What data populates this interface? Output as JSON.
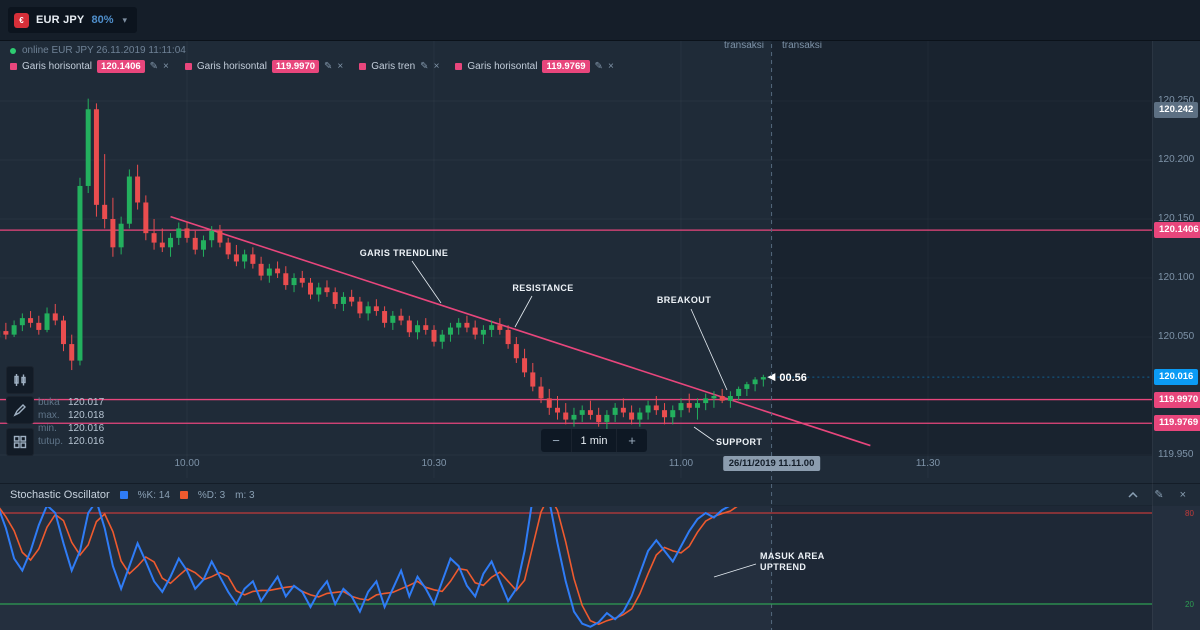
{
  "topbar": {
    "pair": "EUR JPY",
    "payout": "80%"
  },
  "icons": {
    "caret": "▾",
    "edit": "✎",
    "close": "×",
    "minus": "−",
    "plus": "+"
  },
  "status": {
    "text": "online EUR JPY 26.11.2019 11:11:04"
  },
  "drawing_tools": [
    {
      "label": "Garis horisontal",
      "value": "120.1406"
    },
    {
      "label": "Garis horisontal",
      "value": "119.9970"
    },
    {
      "label": "Garis tren",
      "value": ""
    },
    {
      "label": "Garis horisontal",
      "value": "119.9769"
    }
  ],
  "session_labels": {
    "start": "Mulai transaksi",
    "end": "Akhir transaksi"
  },
  "countdown": "00.56",
  "ohlc": {
    "rows": [
      {
        "label": "buka",
        "value": "120.017"
      },
      {
        "label": "max.",
        "value": "120.018"
      },
      {
        "label": "min.",
        "value": "120.016"
      },
      {
        "label": "tutup.",
        "value": "120.016"
      }
    ]
  },
  "timeframe": {
    "label": "1 min"
  },
  "time_axis": {
    "ticks": [
      "10.00",
      "10.30",
      "11.00",
      "11.30"
    ],
    "current": "26/11/2019 11.11.00"
  },
  "price_axis": {
    "ticks": [
      "120.250",
      "120.200",
      "120.150",
      "120.100",
      "120.050",
      "119.950"
    ],
    "badges": [
      {
        "value": "120.242",
        "type": "gray"
      },
      {
        "value": "120.1406",
        "type": "pink"
      },
      {
        "value": "120.016",
        "type": "blue"
      },
      {
        "value": "119.9970",
        "type": "pink"
      },
      {
        "value": "119.9769",
        "type": "pink"
      }
    ]
  },
  "annotations": [
    {
      "id": "trendline",
      "text": "GARIS TRENDLINE"
    },
    {
      "id": "resistance",
      "text": "RESISTANCE"
    },
    {
      "id": "breakout",
      "text": "BREAKOUT"
    },
    {
      "id": "support",
      "text": "SUPPORT"
    },
    {
      "id": "uptrend",
      "text": "MASUK AREA\nUPTREND"
    }
  ],
  "stochastic": {
    "title": "Stochastic Oscillator",
    "k_label": "%K: 14",
    "d_label": "%D: 3",
    "m_label": "m: 3"
  },
  "colors": {
    "up": "#23b05e",
    "down": "#ea4d4f",
    "pink": "#e8467c",
    "blue": "#0b9bf4",
    "k_line": "#2f7cf6",
    "d_line": "#ef5a2e",
    "level_high": "#c03a3a",
    "level_low": "#2e9e53",
    "session_gray": "#54687c"
  },
  "chart_data": [
    {
      "type": "candlestick",
      "pair": "EUR JPY",
      "interval": "1 min",
      "start_time": "09:37",
      "session_start_time": "11:11",
      "current_price": 120.016,
      "y_ticks": [
        120.25,
        120.2,
        120.15,
        120.1,
        120.05,
        119.95
      ],
      "x_ticks": [
        "10.00",
        "10.30",
        "11.00",
        "11.30"
      ],
      "horizontal_lines": [
        120.1406,
        119.997,
        119.9769
      ],
      "trendline": {
        "from_time": "09:58",
        "from_price": 120.152,
        "to_time": "11:23",
        "to_price": 119.958
      },
      "candles": [
        [
          120.05,
          120.06,
          120.045,
          120.055
        ],
        [
          120.055,
          120.062,
          120.048,
          120.052
        ],
        [
          120.052,
          120.064,
          120.05,
          120.06
        ],
        [
          120.06,
          120.07,
          120.055,
          120.066
        ],
        [
          120.066,
          120.072,
          120.058,
          120.062
        ],
        [
          120.062,
          120.068,
          120.052,
          120.056
        ],
        [
          120.056,
          120.075,
          120.054,
          120.07
        ],
        [
          120.07,
          120.078,
          120.06,
          120.064
        ],
        [
          120.064,
          120.068,
          120.038,
          120.044
        ],
        [
          120.044,
          120.052,
          120.022,
          120.03
        ],
        [
          120.03,
          120.185,
          120.026,
          120.178
        ],
        [
          120.178,
          120.252,
          120.172,
          120.243
        ],
        [
          120.243,
          120.248,
          120.152,
          120.162
        ],
        [
          120.162,
          120.205,
          120.142,
          120.15
        ],
        [
          120.15,
          120.168,
          120.118,
          120.126
        ],
        [
          120.126,
          120.152,
          120.12,
          120.146
        ],
        [
          120.146,
          120.192,
          120.142,
          120.186
        ],
        [
          120.186,
          120.196,
          120.158,
          120.164
        ],
        [
          120.164,
          120.17,
          120.132,
          120.138
        ],
        [
          120.138,
          120.15,
          120.124,
          120.13
        ],
        [
          120.13,
          120.142,
          120.122,
          120.126
        ],
        [
          120.126,
          120.138,
          120.118,
          120.134
        ],
        [
          120.134,
          120.147,
          120.128,
          120.142
        ],
        [
          120.142,
          120.148,
          120.13,
          120.134
        ],
        [
          120.134,
          120.14,
          120.12,
          120.124
        ],
        [
          120.124,
          120.136,
          120.118,
          120.132
        ],
        [
          120.132,
          120.144,
          120.126,
          120.14
        ],
        [
          120.14,
          120.145,
          120.126,
          120.13
        ],
        [
          120.13,
          120.134,
          120.116,
          120.12
        ],
        [
          120.12,
          120.128,
          120.11,
          120.114
        ],
        [
          120.114,
          120.124,
          120.108,
          120.12
        ],
        [
          120.12,
          120.126,
          120.108,
          120.112
        ],
        [
          120.112,
          120.118,
          120.098,
          120.102
        ],
        [
          120.102,
          120.112,
          120.096,
          120.108
        ],
        [
          120.108,
          120.114,
          120.1,
          120.104
        ],
        [
          120.104,
          120.11,
          120.09,
          120.094
        ],
        [
          120.094,
          120.104,
          120.088,
          120.1
        ],
        [
          120.1,
          120.106,
          120.092,
          120.096
        ],
        [
          120.096,
          120.1,
          120.082,
          120.086
        ],
        [
          120.086,
          120.096,
          120.08,
          120.092
        ],
        [
          120.092,
          120.098,
          120.084,
          120.088
        ],
        [
          120.088,
          120.092,
          120.074,
          120.078
        ],
        [
          120.078,
          120.088,
          120.072,
          120.084
        ],
        [
          120.084,
          120.09,
          120.076,
          120.08
        ],
        [
          120.08,
          120.084,
          120.066,
          120.07
        ],
        [
          120.07,
          120.08,
          120.064,
          120.076
        ],
        [
          120.076,
          120.082,
          120.068,
          120.072
        ],
        [
          120.072,
          120.076,
          120.058,
          120.062
        ],
        [
          120.062,
          120.072,
          120.056,
          120.068
        ],
        [
          120.068,
          120.074,
          120.06,
          120.064
        ],
        [
          120.064,
          120.068,
          120.05,
          120.054
        ],
        [
          120.054,
          120.064,
          120.048,
          120.06
        ],
        [
          120.06,
          120.066,
          120.052,
          120.056
        ],
        [
          120.056,
          120.06,
          120.042,
          120.046
        ],
        [
          120.046,
          120.056,
          120.04,
          120.052
        ],
        [
          120.052,
          120.062,
          120.046,
          120.058
        ],
        [
          120.058,
          120.066,
          120.052,
          120.062
        ],
        [
          120.062,
          120.068,
          120.054,
          120.058
        ],
        [
          120.058,
          120.064,
          120.048,
          120.052
        ],
        [
          120.052,
          120.06,
          120.044,
          120.056
        ],
        [
          120.056,
          120.064,
          120.05,
          120.06
        ],
        [
          120.06,
          120.066,
          120.052,
          120.056
        ],
        [
          120.056,
          120.06,
          120.04,
          120.044
        ],
        [
          120.044,
          120.05,
          120.028,
          120.032
        ],
        [
          120.032,
          120.04,
          120.016,
          120.02
        ],
        [
          120.02,
          120.028,
          120.004,
          120.008
        ],
        [
          120.008,
          120.016,
          119.994,
          119.998
        ],
        [
          119.998,
          120.006,
          119.984,
          119.99
        ],
        [
          119.99,
          120.0,
          119.98,
          119.986
        ],
        [
          119.986,
          119.994,
          119.976,
          119.98
        ],
        [
          119.98,
          119.99,
          119.974,
          119.984
        ],
        [
          119.984,
          119.992,
          119.978,
          119.988
        ],
        [
          119.988,
          119.996,
          119.98,
          119.984
        ],
        [
          119.984,
          119.99,
          119.974,
          119.978
        ],
        [
          119.978,
          119.988,
          119.972,
          119.984
        ],
        [
          119.984,
          119.994,
          119.978,
          119.99
        ],
        [
          119.99,
          119.998,
          119.982,
          119.986
        ],
        [
          119.986,
          119.992,
          119.976,
          119.98
        ],
        [
          119.98,
          119.99,
          119.974,
          119.986
        ],
        [
          119.986,
          119.996,
          119.98,
          119.992
        ],
        [
          119.992,
          120.0,
          119.984,
          119.988
        ],
        [
          119.988,
          119.994,
          119.976,
          119.982
        ],
        [
          119.982,
          119.992,
          119.976,
          119.988
        ],
        [
          119.988,
          119.998,
          119.982,
          119.994
        ],
        [
          119.994,
          120.002,
          119.986,
          119.99
        ],
        [
          119.99,
          119.998,
          119.98,
          119.994
        ],
        [
          119.994,
          120.002,
          119.988,
          119.998
        ],
        [
          119.998,
          120.004,
          119.99,
          120.0
        ],
        [
          120.0,
          120.006,
          119.994,
          119.996
        ],
        [
          119.996,
          120.004,
          119.99,
          120.0
        ],
        [
          120.0,
          120.008,
          119.996,
          120.006
        ],
        [
          120.006,
          120.012,
          120.0,
          120.01
        ],
        [
          120.01,
          120.016,
          120.004,
          120.014
        ],
        [
          120.014,
          120.018,
          120.008,
          120.016
        ]
      ]
    },
    {
      "type": "line",
      "title": "Stochastic Oscillator",
      "ylim": [
        0,
        100
      ],
      "levels": [
        {
          "value": 80,
          "color": "#c03a3a"
        },
        {
          "value": 20,
          "color": "#2e9e53"
        }
      ],
      "series": [
        {
          "name": "%K",
          "period": 14,
          "color": "#2f7cf6",
          "values": [
            85,
            70,
            50,
            42,
            55,
            72,
            85,
            80,
            60,
            42,
            55,
            80,
            88,
            70,
            45,
            30,
            45,
            60,
            48,
            35,
            28,
            38,
            50,
            42,
            30,
            36,
            48,
            38,
            28,
            20,
            30,
            35,
            22,
            30,
            38,
            25,
            32,
            28,
            18,
            28,
            35,
            20,
            30,
            25,
            15,
            28,
            35,
            18,
            30,
            42,
            25,
            38,
            30,
            20,
            35,
            50,
            45,
            32,
            25,
            40,
            48,
            35,
            22,
            30,
            55,
            90,
            97,
            88,
            60,
            35,
            15,
            7,
            5,
            8,
            14,
            10,
            15,
            25,
            40,
            55,
            62,
            55,
            48,
            58,
            68,
            76,
            80,
            77,
            82,
            85,
            88,
            90,
            92,
            94
          ]
        },
        {
          "name": "%D",
          "period": 3,
          "color": "#ef5a2e",
          "derived": "sma3 of %K"
        }
      ]
    }
  ]
}
